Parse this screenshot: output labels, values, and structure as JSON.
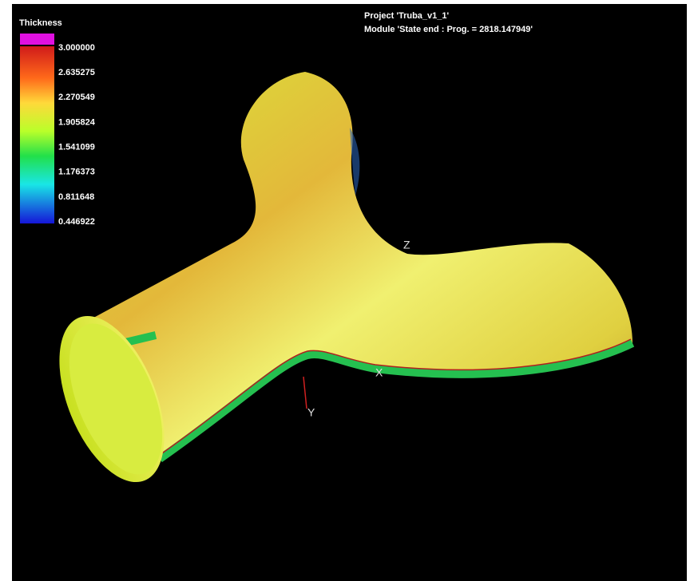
{
  "legend": {
    "title": "Thickness",
    "labels": [
      "3.000000",
      "2.635275",
      "2.270549",
      "1.905824",
      "1.541099",
      "1.176373",
      "0.811648",
      "0.446922"
    ]
  },
  "header": {
    "project": "Project 'Truba_v1_1'",
    "module": "Module 'State end : Prog. = 2818.147949'"
  },
  "axes": {
    "z": "Z",
    "x": "X",
    "y": "Y"
  }
}
